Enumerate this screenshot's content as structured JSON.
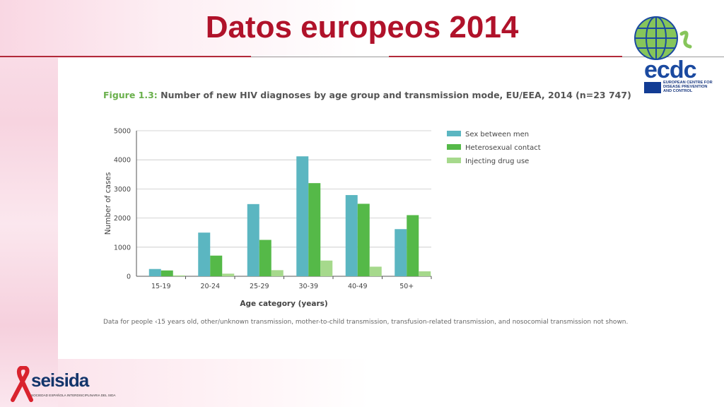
{
  "slide": {
    "title": "Datos europeos 2014"
  },
  "figure": {
    "number": "Figure 1.3:",
    "title": "Number of new HIV diagnoses by age group and transmission mode, EU/EEA, 2014 (n=23 747)",
    "note": "Data for people ‹15 years old, other/unknown transmission, mother-to-child transmission, transfusion-related transmission, and nosocomial transmission not shown."
  },
  "logos": {
    "ecdc_name": "ecdc",
    "ecdc_subtitle_1": "EUROPEAN CENTRE FOR",
    "ecdc_subtitle_2": "DISEASE PREVENTION",
    "ecdc_subtitle_3": "AND CONTROL",
    "seisida_name": "seisida",
    "seisida_subtitle": "SOCIEDAD ESPAÑOLA INTERDISCIPLINARIA DEL SIDA"
  },
  "colors": {
    "title": "#b0122a",
    "accent_green": "#6ab04c"
  },
  "chart_data": {
    "type": "bar",
    "xlabel": "Age category (years)",
    "ylabel": "Number of cases",
    "ylim": [
      0,
      5000
    ],
    "yticks": [
      0,
      1000,
      2000,
      3000,
      4000,
      5000
    ],
    "grid": true,
    "legend_position": "right",
    "categories": [
      "15-19",
      "20-24",
      "25-29",
      "30-39",
      "40-49",
      "50+"
    ],
    "series": [
      {
        "name": "Sex between men",
        "color": "#5bb6c1",
        "values": [
          250,
          1500,
          2480,
          4120,
          2790,
          1620
        ]
      },
      {
        "name": "Heterosexual contact",
        "color": "#55b948",
        "values": [
          200,
          710,
          1250,
          3200,
          2490,
          2100
        ]
      },
      {
        "name": "Injecting drug use",
        "color": "#a6d98c",
        "values": [
          30,
          90,
          210,
          540,
          330,
          170
        ]
      }
    ]
  }
}
